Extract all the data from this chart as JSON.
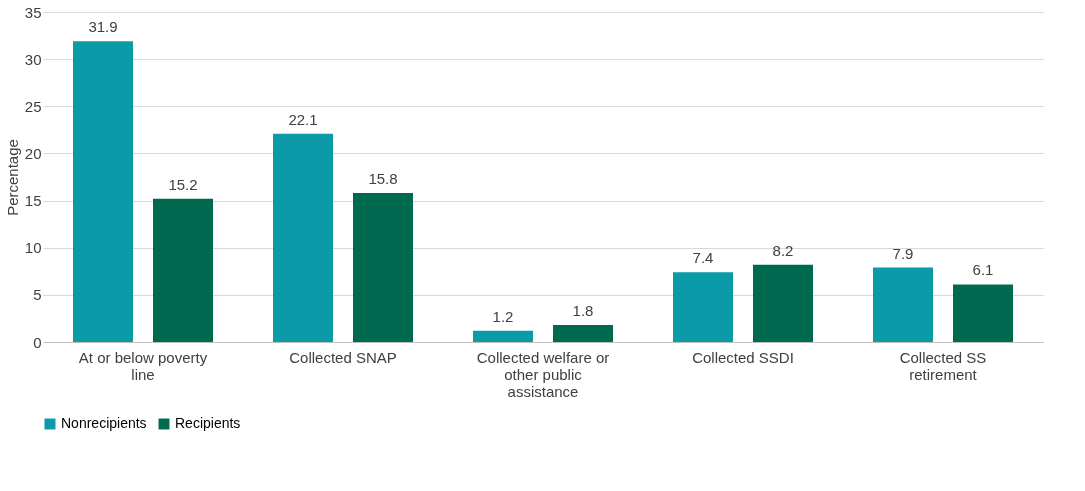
{
  "chart_data": {
    "type": "bar",
    "ylabel": "Percentage",
    "categories": [
      "At or below poverty line",
      "Collected SNAP",
      "Collected welfare or other public assistance",
      "Collected SSDI",
      "Collected SS retirement"
    ],
    "series": [
      {
        "name": "Nonrecipients",
        "color": "#0b9aa8",
        "values": [
          31.9,
          22.1,
          1.2,
          7.4,
          7.9
        ]
      },
      {
        "name": "Recipients",
        "color": "#006a50",
        "values": [
          15.2,
          15.8,
          1.8,
          8.2,
          6.1
        ]
      }
    ],
    "ylim": [
      0,
      35
    ],
    "yticks": [
      0,
      5,
      10,
      15,
      20,
      25,
      30,
      35
    ],
    "grid": "y",
    "legend": "bottom",
    "data_labels": true
  }
}
